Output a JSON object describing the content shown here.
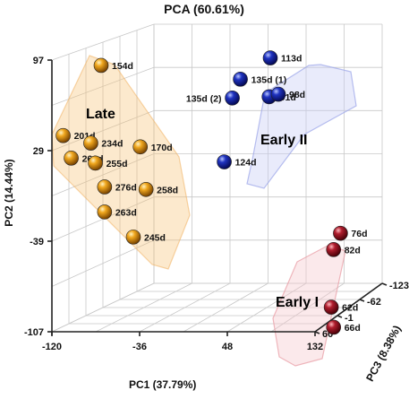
{
  "chart_data": {
    "type": "scatter",
    "projection": "3d",
    "title": "PCA (60.61%)",
    "axes": {
      "x": {
        "label": "PC1 (37.79%)",
        "range": [
          -120,
          132
        ],
        "ticks": [
          "-120",
          "-36",
          "48",
          "132"
        ]
      },
      "y": {
        "label": "PC2 (14.44%)",
        "range": [
          -107,
          97
        ],
        "ticks": [
          "-107",
          "-39",
          "29",
          "97"
        ]
      },
      "z": {
        "label": "PC3 (8.38%)",
        "range": [
          -123,
          60
        ],
        "ticks": [
          "-123",
          "-62",
          "-1",
          "60"
        ]
      }
    },
    "grid": true,
    "colors": {
      "late": "#e89a14",
      "early_ii": "#1f2fb8",
      "early_i": "#b01e2e",
      "late_label": "#e0a020",
      "early_ii_label": "#1f35c8",
      "early_i_label": "#d64050"
    },
    "groups": [
      {
        "name": "Late",
        "color_key": "late",
        "points": [
          {
            "label": "154d",
            "coords": [
              -85,
              87,
              0
            ]
          },
          {
            "label": "201d",
            "coords": [
              -118,
              31,
              0
            ]
          },
          {
            "label": "234d",
            "coords": [
              -94,
              25,
              0
            ]
          },
          {
            "label": "266d",
            "coords": [
              -111,
              13,
              0
            ]
          },
          {
            "label": "255d",
            "coords": [
              -90,
              9,
              0
            ]
          },
          {
            "label": "170d",
            "coords": [
              -51,
              22,
              0
            ]
          },
          {
            "label": "276d",
            "coords": [
              -82,
              -10,
              0
            ]
          },
          {
            "label": "258d",
            "coords": [
              -46,
              -12,
              0
            ]
          },
          {
            "label": "263d",
            "coords": [
              -82,
              -30,
              0
            ]
          },
          {
            "label": "245d",
            "coords": [
              -57,
              -50,
              0
            ]
          }
        ]
      },
      {
        "name": "Early II",
        "color_key": "early_ii",
        "points": [
          {
            "label": "113d",
            "coords": [
              62,
              93,
              0
            ]
          },
          {
            "label": "135d (1)",
            "coords": [
              36,
              76,
              0
            ]
          },
          {
            "label": "135d (2)",
            "coords": [
              29,
              61,
              0
            ]
          },
          {
            "label": "91d",
            "coords": [
              61,
              62,
              0
            ]
          },
          {
            "label": "98d",
            "coords": [
              69,
              64,
              0
            ]
          },
          {
            "label": "124d",
            "coords": [
              22,
              10,
              0
            ]
          }
        ]
      },
      {
        "name": "Early I",
        "color_key": "early_i",
        "points": [
          {
            "label": "76d",
            "coords": [
              123,
              -47,
              0
            ]
          },
          {
            "label": "82d",
            "coords": [
              117,
              -60,
              0
            ]
          },
          {
            "label": "62d",
            "coords": [
              115,
              -106,
              0
            ]
          },
          {
            "label": "66d",
            "coords": [
              117,
              -122,
              0
            ]
          }
        ]
      }
    ]
  }
}
